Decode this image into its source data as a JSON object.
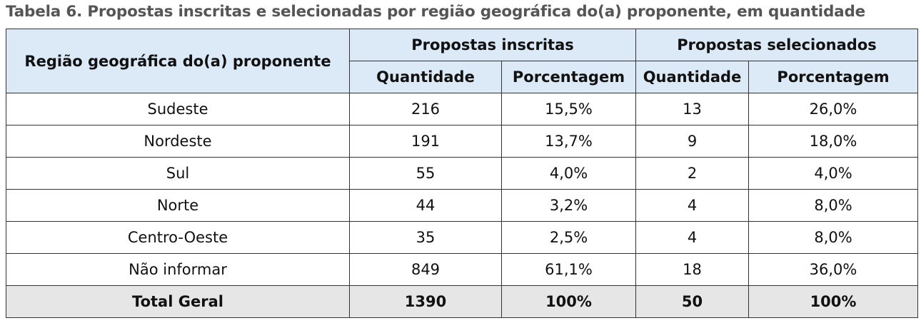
{
  "title": "Tabela 6. Propostas inscritas e selecionadas por região geográfica do(a) proponente, em quantidade",
  "table": {
    "header": {
      "region": "Região geográfica do(a) proponente",
      "groups": [
        "Propostas inscritas",
        "Propostas selecionados"
      ],
      "subheaders": [
        "Quantidade",
        "Porcentagem",
        "Quantidade",
        "Porcentagem"
      ]
    },
    "rows": [
      [
        "Sudeste",
        "216",
        "15,5%",
        "13",
        "26,0%"
      ],
      [
        "Nordeste",
        "191",
        "13,7%",
        "9",
        "18,0%"
      ],
      [
        "Sul",
        "55",
        "4,0%",
        "2",
        "4,0%"
      ],
      [
        "Norte",
        "44",
        "3,2%",
        "4",
        "8,0%"
      ],
      [
        "Centro-Oeste",
        "35",
        "2,5%",
        "4",
        "8,0%"
      ],
      [
        "Não informar",
        "849",
        "61,1%",
        "18",
        "36,0%"
      ]
    ],
    "total": [
      "Total Geral",
      "1390",
      "100%",
      "50",
      "100%"
    ]
  }
}
